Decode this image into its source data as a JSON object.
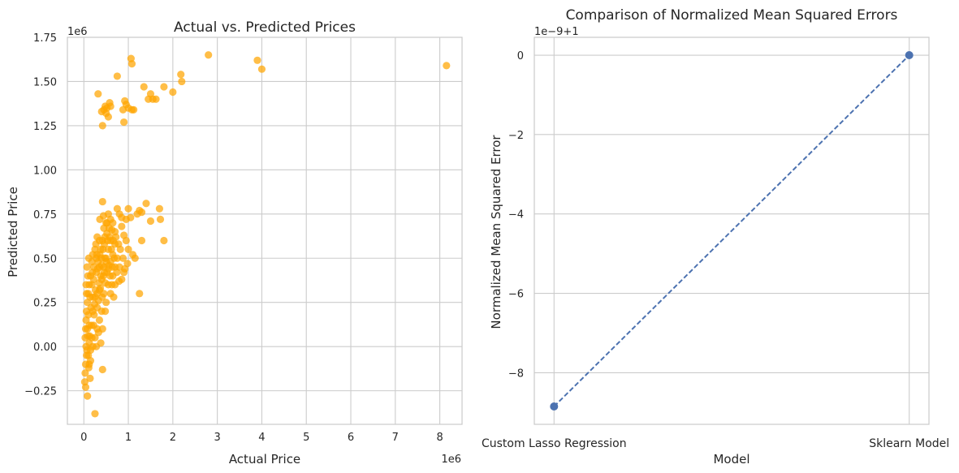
{
  "chart_data": [
    {
      "type": "scatter",
      "title": "Actual vs. Predicted Prices",
      "xlabel": "Actual Price",
      "ylabel": "Predicted Price",
      "x_offset_text": "1e6",
      "y_offset_text": "1e6",
      "xlim": [
        -0.37,
        8.5
      ],
      "ylim": [
        -0.44,
        1.75
      ],
      "xticks": [
        0,
        1,
        2,
        3,
        4,
        5,
        6,
        7,
        8
      ],
      "xtick_labels": [
        "0",
        "1",
        "2",
        "3",
        "4",
        "5",
        "6",
        "7",
        "8"
      ],
      "yticks": [
        -0.25,
        0.0,
        0.25,
        0.5,
        0.75,
        1.0,
        1.25,
        1.5,
        1.75
      ],
      "ytick_labels": [
        "−0.25",
        "0.00",
        "0.25",
        "0.50",
        "0.75",
        "1.00",
        "1.25",
        "1.50",
        "1.75"
      ],
      "grid": true,
      "color": "#ffa500",
      "points": [
        [
          0.32,
          1.43
        ],
        [
          0.4,
          1.33
        ],
        [
          0.45,
          1.34
        ],
        [
          0.5,
          1.32
        ],
        [
          0.55,
          1.3
        ],
        [
          0.48,
          1.36
        ],
        [
          0.58,
          1.38
        ],
        [
          0.42,
          1.25
        ],
        [
          0.52,
          1.35
        ],
        [
          0.6,
          1.36
        ],
        [
          0.75,
          1.53
        ],
        [
          0.92,
          1.39
        ],
        [
          0.95,
          1.37
        ],
        [
          0.88,
          1.34
        ],
        [
          1.0,
          1.35
        ],
        [
          0.9,
          1.27
        ],
        [
          1.08,
          1.34
        ],
        [
          1.12,
          1.34
        ],
        [
          1.06,
          1.63
        ],
        [
          1.08,
          1.6
        ],
        [
          1.35,
          1.47
        ],
        [
          1.45,
          1.4
        ],
        [
          1.5,
          1.43
        ],
        [
          1.55,
          1.4
        ],
        [
          1.62,
          1.4
        ],
        [
          1.8,
          1.47
        ],
        [
          2.0,
          1.44
        ],
        [
          2.18,
          1.54
        ],
        [
          2.2,
          1.5
        ],
        [
          2.8,
          1.65
        ],
        [
          3.9,
          1.62
        ],
        [
          4.0,
          1.57
        ],
        [
          8.15,
          1.59
        ],
        [
          0.42,
          0.82
        ],
        [
          0.75,
          0.78
        ],
        [
          0.8,
          0.75
        ],
        [
          0.85,
          0.73
        ],
        [
          0.95,
          0.72
        ],
        [
          1.0,
          0.78
        ],
        [
          1.05,
          0.73
        ],
        [
          1.2,
          0.75
        ],
        [
          1.25,
          0.77
        ],
        [
          1.3,
          0.76
        ],
        [
          1.4,
          0.81
        ],
        [
          1.5,
          0.71
        ],
        [
          1.7,
          0.78
        ],
        [
          1.72,
          0.72
        ],
        [
          1.8,
          0.6
        ],
        [
          1.3,
          0.6
        ],
        [
          1.15,
          0.5
        ],
        [
          1.25,
          0.3
        ],
        [
          1.0,
          0.55
        ],
        [
          0.98,
          0.47
        ],
        [
          1.1,
          0.52
        ],
        [
          0.9,
          0.63
        ],
        [
          0.85,
          0.68
        ],
        [
          0.7,
          0.65
        ],
        [
          0.65,
          0.7
        ],
        [
          0.6,
          0.72
        ],
        [
          0.55,
          0.75
        ],
        [
          0.5,
          0.7
        ],
        [
          0.45,
          0.67
        ],
        [
          0.42,
          0.6
        ],
        [
          0.38,
          0.55
        ],
        [
          0.35,
          0.6
        ],
        [
          0.3,
          0.62
        ],
        [
          0.28,
          0.5
        ],
        [
          0.25,
          0.55
        ],
        [
          0.22,
          0.45
        ],
        [
          0.2,
          0.52
        ],
        [
          0.18,
          0.48
        ],
        [
          0.15,
          0.4
        ],
        [
          0.12,
          0.35
        ],
        [
          0.1,
          0.3
        ],
        [
          0.08,
          0.25
        ],
        [
          0.06,
          0.2
        ],
        [
          0.05,
          0.15
        ],
        [
          0.04,
          0.1
        ],
        [
          0.03,
          0.05
        ],
        [
          0.05,
          0.0
        ],
        [
          0.06,
          -0.05
        ],
        [
          0.04,
          -0.1
        ],
        [
          0.03,
          -0.15
        ],
        [
          0.02,
          -0.2
        ],
        [
          0.04,
          -0.23
        ],
        [
          0.08,
          -0.28
        ],
        [
          0.25,
          -0.38
        ],
        [
          0.42,
          -0.13
        ],
        [
          0.1,
          -0.05
        ],
        [
          0.12,
          -0.1
        ],
        [
          0.15,
          -0.02
        ],
        [
          0.18,
          0.05
        ],
        [
          0.22,
          0.12
        ],
        [
          0.2,
          0.2
        ],
        [
          0.25,
          0.28
        ],
        [
          0.3,
          0.22
        ],
        [
          0.35,
          0.32
        ],
        [
          0.4,
          0.38
        ],
        [
          0.45,
          0.45
        ],
        [
          0.5,
          0.5
        ],
        [
          0.55,
          0.55
        ],
        [
          0.6,
          0.48
        ],
        [
          0.65,
          0.52
        ],
        [
          0.7,
          0.58
        ],
        [
          0.75,
          0.5
        ],
        [
          0.8,
          0.45
        ],
        [
          0.85,
          0.38
        ],
        [
          0.9,
          0.42
        ],
        [
          0.95,
          0.6
        ],
        [
          0.55,
          0.35
        ],
        [
          0.6,
          0.3
        ],
        [
          0.65,
          0.4
        ],
        [
          0.7,
          0.45
        ],
        [
          0.5,
          0.25
        ],
        [
          0.45,
          0.3
        ],
        [
          0.4,
          0.2
        ],
        [
          0.35,
          0.15
        ],
        [
          0.3,
          0.1
        ],
        [
          0.25,
          0.05
        ],
        [
          0.2,
          0.0
        ],
        [
          0.15,
          -0.08
        ],
        [
          0.12,
          0.02
        ],
        [
          0.08,
          0.1
        ],
        [
          0.1,
          0.18
        ],
        [
          0.14,
          0.28
        ],
        [
          0.18,
          0.35
        ],
        [
          0.22,
          0.38
        ],
        [
          0.28,
          0.42
        ],
        [
          0.32,
          0.48
        ],
        [
          0.36,
          0.52
        ],
        [
          0.4,
          0.46
        ],
        [
          0.44,
          0.4
        ],
        [
          0.48,
          0.36
        ],
        [
          0.52,
          0.42
        ],
        [
          0.56,
          0.46
        ],
        [
          0.62,
          0.55
        ],
        [
          0.66,
          0.6
        ],
        [
          0.72,
          0.62
        ],
        [
          0.78,
          0.58
        ],
        [
          0.82,
          0.55
        ],
        [
          0.88,
          0.5
        ],
        [
          0.92,
          0.44
        ],
        [
          0.58,
          0.62
        ],
        [
          0.52,
          0.64
        ],
        [
          0.46,
          0.58
        ],
        [
          0.38,
          0.4
        ],
        [
          0.34,
          0.36
        ],
        [
          0.26,
          0.32
        ],
        [
          0.24,
          0.24
        ],
        [
          0.2,
          0.28
        ],
        [
          0.16,
          0.22
        ],
        [
          0.12,
          0.12
        ],
        [
          0.09,
          0.06
        ],
        [
          0.07,
          -0.02
        ],
        [
          0.11,
          -0.12
        ],
        [
          0.14,
          -0.18
        ],
        [
          0.3,
          0.3
        ],
        [
          0.33,
          0.26
        ],
        [
          0.37,
          0.33
        ],
        [
          0.41,
          0.28
        ],
        [
          0.47,
          0.5
        ],
        [
          0.53,
          0.6
        ],
        [
          0.57,
          0.67
        ],
        [
          0.63,
          0.66
        ],
        [
          0.68,
          0.5
        ],
        [
          0.74,
          0.42
        ],
        [
          0.79,
          0.37
        ],
        [
          0.27,
          0.58
        ],
        [
          0.29,
          0.52
        ],
        [
          0.31,
          0.44
        ],
        [
          0.19,
          0.42
        ],
        [
          0.23,
          0.18
        ],
        [
          0.17,
          0.12
        ],
        [
          0.13,
          0.06
        ],
        [
          0.06,
          0.3
        ],
        [
          0.09,
          0.4
        ],
        [
          0.05,
          0.35
        ],
        [
          0.07,
          0.45
        ],
        [
          0.11,
          0.5
        ],
        [
          0.36,
          0.72
        ],
        [
          0.44,
          0.74
        ],
        [
          0.52,
          0.7
        ],
        [
          0.6,
          0.6
        ],
        [
          0.64,
          0.45
        ],
        [
          0.7,
          0.35
        ],
        [
          0.48,
          0.2
        ],
        [
          0.42,
          0.1
        ],
        [
          0.38,
          0.02
        ],
        [
          0.33,
          0.08
        ],
        [
          0.28,
          0.0
        ],
        [
          0.35,
          0.45
        ],
        [
          0.39,
          0.5
        ],
        [
          0.43,
          0.55
        ],
        [
          0.47,
          0.62
        ],
        [
          0.51,
          0.48
        ],
        [
          0.55,
          0.44
        ],
        [
          0.59,
          0.4
        ],
        [
          0.63,
          0.35
        ],
        [
          0.67,
          0.28
        ],
        [
          0.46,
          0.42
        ]
      ]
    },
    {
      "type": "line",
      "title": "Comparison of Normalized Mean Squared Errors",
      "xlabel": "Model",
      "ylabel": "Normalized Mean Squared Error",
      "y_offset_text": "1e−9+1",
      "categories": [
        "Custom Lasso Regression",
        "Sklearn Model"
      ],
      "values": [
        -8.85,
        0
      ],
      "ylim": [
        -9.3,
        0.45
      ],
      "yticks": [
        -8,
        -6,
        -4,
        -2,
        0
      ],
      "ytick_labels": [
        "−8",
        "−6",
        "−4",
        "−2",
        "0"
      ],
      "grid": true,
      "line_style": "dashed",
      "marker": "circle",
      "color": "#4c72b0"
    }
  ]
}
